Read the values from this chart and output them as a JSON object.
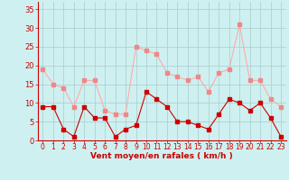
{
  "x": [
    0,
    1,
    2,
    3,
    4,
    5,
    6,
    7,
    8,
    9,
    10,
    11,
    12,
    13,
    14,
    15,
    16,
    17,
    18,
    19,
    20,
    21,
    22,
    23
  ],
  "rafales": [
    19,
    15,
    14,
    9,
    16,
    16,
    8,
    7,
    7,
    25,
    24,
    23,
    18,
    17,
    16,
    17,
    13,
    18,
    19,
    31,
    16,
    16,
    11,
    9
  ],
  "moyen": [
    9,
    9,
    3,
    1,
    9,
    6,
    6,
    1,
    3,
    4,
    13,
    11,
    9,
    5,
    5,
    4,
    3,
    7,
    11,
    10,
    8,
    10,
    6,
    1
  ],
  "line_color_rafales": "#ffaaaa",
  "line_color_moyen": "#cc0000",
  "marker_color_rafales": "#ee8888",
  "marker_color_moyen": "#cc0000",
  "bg_color": "#cff0f0",
  "grid_color": "#aacccc",
  "xlabel": "Vent moyen/en rafales ( km/h )",
  "xlabel_color": "#cc0000",
  "tick_color": "#cc0000",
  "axis_line_color": "#cc0000",
  "ylim": [
    0,
    37
  ],
  "yticks": [
    0,
    5,
    10,
    15,
    20,
    25,
    30,
    35
  ],
  "xlim": [
    -0.5,
    23.5
  ]
}
